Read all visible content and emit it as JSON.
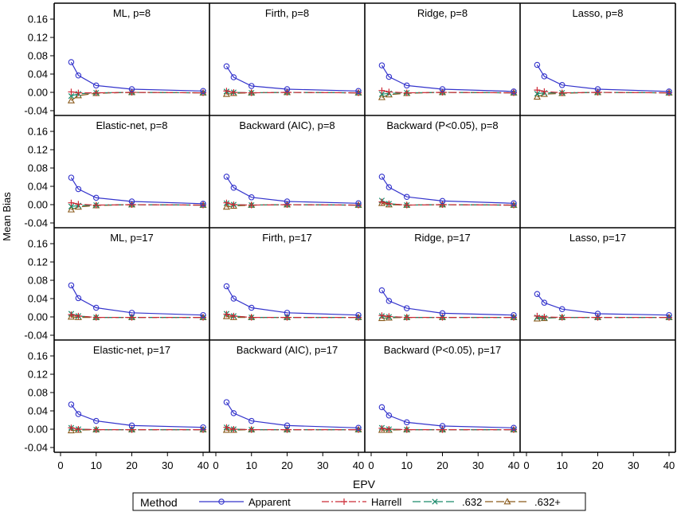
{
  "chart_data": {
    "type": "line",
    "ylabel": "Mean Bias",
    "xlabel": "EPV",
    "xlim": [
      0,
      40
    ],
    "ylim": [
      -0.04,
      0.16
    ],
    "x_ticks": [
      "0",
      "10",
      "20",
      "30",
      "40"
    ],
    "y_ticks": [
      "-0.04",
      "0.00",
      "0.04",
      "0.08",
      "0.12",
      "0.16"
    ],
    "grid": false,
    "legend": {
      "position": "bottom",
      "title": "Method",
      "entries": [
        {
          "name": "Apparent",
          "color": "#3434cc",
          "marker": "circle",
          "dash": "solid"
        },
        {
          "name": "Harrell",
          "color": "#cc2a36",
          "marker": "plus",
          "dash": "dashdot"
        },
        {
          "name": ".632",
          "color": "#1b8a6b",
          "marker": "x",
          "dash": "longdash"
        },
        {
          "name": ".632+",
          "color": "#8a5a1b",
          "marker": "triangle",
          "dash": "longdash"
        }
      ]
    },
    "x": [
      3,
      5,
      10,
      20,
      40
    ],
    "panels": [
      {
        "title": "ML, p=8",
        "series": [
          {
            "name": "Apparent",
            "values": [
              0.066,
              0.037,
              0.015,
              0.007,
              0.003
            ]
          },
          {
            "name": "Harrell",
            "values": [
              0.001,
              -0.001,
              -0.001,
              0.0,
              -0.001
            ]
          },
          {
            "name": ".632",
            "values": [
              -0.008,
              -0.003,
              -0.001,
              0.0,
              -0.001
            ]
          },
          {
            "name": ".632+",
            "values": [
              -0.018,
              -0.007,
              -0.002,
              0.0,
              -0.001
            ]
          }
        ]
      },
      {
        "title": "Firth, p=8",
        "series": [
          {
            "name": "Apparent",
            "values": [
              0.057,
              0.033,
              0.014,
              0.007,
              0.003
            ]
          },
          {
            "name": "Harrell",
            "values": [
              0.003,
              0.0,
              -0.001,
              0.0,
              -0.001
            ]
          },
          {
            "name": ".632",
            "values": [
              0.002,
              0.0,
              -0.001,
              0.0,
              -0.001
            ]
          },
          {
            "name": ".632+",
            "values": [
              -0.004,
              -0.002,
              -0.001,
              0.0,
              -0.001
            ]
          }
        ]
      },
      {
        "title": "Ridge, p=8",
        "series": [
          {
            "name": "Apparent",
            "values": [
              0.059,
              0.034,
              0.015,
              0.007,
              0.002
            ]
          },
          {
            "name": "Harrell",
            "values": [
              0.004,
              0.001,
              -0.001,
              0.0,
              -0.001
            ]
          },
          {
            "name": ".632",
            "values": [
              -0.004,
              -0.002,
              -0.001,
              0.0,
              -0.001
            ]
          },
          {
            "name": ".632+",
            "values": [
              -0.011,
              -0.005,
              -0.002,
              0.0,
              -0.001
            ]
          }
        ]
      },
      {
        "title": "Lasso, p=8",
        "series": [
          {
            "name": "Apparent",
            "values": [
              0.06,
              0.035,
              0.016,
              0.007,
              0.002
            ]
          },
          {
            "name": "Harrell",
            "values": [
              0.005,
              0.002,
              -0.001,
              0.0,
              -0.001
            ]
          },
          {
            "name": ".632",
            "values": [
              -0.003,
              -0.001,
              -0.001,
              0.0,
              -0.001
            ]
          },
          {
            "name": ".632+",
            "values": [
              -0.01,
              -0.004,
              -0.002,
              0.0,
              -0.001
            ]
          }
        ]
      },
      {
        "title": "Elastic-net, p=8",
        "series": [
          {
            "name": "Apparent",
            "values": [
              0.059,
              0.034,
              0.015,
              0.007,
              0.002
            ]
          },
          {
            "name": "Harrell",
            "values": [
              0.004,
              0.001,
              -0.001,
              0.0,
              -0.001
            ]
          },
          {
            "name": ".632",
            "values": [
              -0.004,
              -0.002,
              -0.001,
              0.0,
              -0.001
            ]
          },
          {
            "name": ".632+",
            "values": [
              -0.011,
              -0.005,
              -0.002,
              0.0,
              -0.001
            ]
          }
        ]
      },
      {
        "title": "Backward (AIC), p=8",
        "series": [
          {
            "name": "Apparent",
            "values": [
              0.061,
              0.037,
              0.016,
              0.007,
              0.003
            ]
          },
          {
            "name": "Harrell",
            "values": [
              0.004,
              0.0,
              -0.001,
              0.0,
              -0.001
            ]
          },
          {
            "name": ".632",
            "values": [
              0.003,
              0.0,
              -0.001,
              0.0,
              -0.001
            ]
          },
          {
            "name": ".632+",
            "values": [
              -0.005,
              -0.003,
              -0.001,
              0.0,
              -0.001
            ]
          }
        ]
      },
      {
        "title": "Backward (P<0.05), p=8",
        "series": [
          {
            "name": "Apparent",
            "values": [
              0.061,
              0.038,
              0.017,
              0.008,
              0.003
            ]
          },
          {
            "name": "Harrell",
            "values": [
              0.006,
              0.002,
              -0.001,
              0.0,
              -0.001
            ]
          },
          {
            "name": ".632",
            "values": [
              0.009,
              0.002,
              -0.001,
              0.0,
              -0.001
            ]
          },
          {
            "name": ".632+",
            "values": [
              0.003,
              0.0,
              -0.001,
              0.0,
              -0.001
            ]
          }
        ]
      },
      null,
      {
        "title": "ML, p=17",
        "series": [
          {
            "name": "Apparent",
            "values": [
              0.069,
              0.041,
              0.02,
              0.009,
              0.004
            ]
          },
          {
            "name": "Harrell",
            "values": [
              0.005,
              0.002,
              -0.001,
              -0.001,
              -0.001
            ]
          },
          {
            "name": ".632",
            "values": [
              0.007,
              0.002,
              -0.001,
              -0.001,
              -0.001
            ]
          },
          {
            "name": ".632+",
            "values": [
              0.0,
              -0.001,
              -0.001,
              -0.001,
              -0.001
            ]
          }
        ]
      },
      {
        "title": "Firth, p=17",
        "series": [
          {
            "name": "Apparent",
            "values": [
              0.067,
              0.04,
              0.02,
              0.009,
              0.004
            ]
          },
          {
            "name": "Harrell",
            "values": [
              0.006,
              0.002,
              -0.001,
              -0.001,
              -0.001
            ]
          },
          {
            "name": ".632",
            "values": [
              0.007,
              0.002,
              -0.001,
              -0.001,
              -0.001
            ]
          },
          {
            "name": ".632+",
            "values": [
              0.001,
              -0.001,
              -0.001,
              -0.001,
              -0.001
            ]
          }
        ]
      },
      {
        "title": "Ridge, p=17",
        "series": [
          {
            "name": "Apparent",
            "values": [
              0.058,
              0.035,
              0.019,
              0.008,
              0.004
            ]
          },
          {
            "name": "Harrell",
            "values": [
              0.003,
              0.001,
              -0.001,
              -0.001,
              -0.001
            ]
          },
          {
            "name": ".632",
            "values": [
              0.002,
              0.0,
              -0.001,
              -0.001,
              -0.001
            ]
          },
          {
            "name": ".632+",
            "values": [
              -0.003,
              -0.002,
              -0.001,
              -0.001,
              -0.001
            ]
          }
        ]
      },
      {
        "title": "Lasso, p=17",
        "series": [
          {
            "name": "Apparent",
            "values": [
              0.05,
              0.031,
              0.017,
              0.007,
              0.004
            ]
          },
          {
            "name": "Harrell",
            "values": [
              0.002,
              0.0,
              -0.001,
              -0.001,
              -0.001
            ]
          },
          {
            "name": ".632",
            "values": [
              -0.001,
              -0.002,
              -0.001,
              -0.001,
              -0.001
            ]
          },
          {
            "name": ".632+",
            "values": [
              -0.004,
              -0.003,
              -0.001,
              -0.001,
              -0.001
            ]
          }
        ]
      },
      {
        "title": "Elastic-net, p=17",
        "series": [
          {
            "name": "Apparent",
            "values": [
              0.054,
              0.033,
              0.018,
              0.008,
              0.004
            ]
          },
          {
            "name": "Harrell",
            "values": [
              0.003,
              0.0,
              -0.001,
              -0.001,
              -0.001
            ]
          },
          {
            "name": ".632",
            "values": [
              0.003,
              0.0,
              -0.001,
              -0.001,
              -0.001
            ]
          },
          {
            "name": ".632+",
            "values": [
              -0.003,
              -0.002,
              -0.001,
              -0.001,
              -0.001
            ]
          }
        ]
      },
      {
        "title": "Backward (AIC), p=17",
        "series": [
          {
            "name": "Apparent",
            "values": [
              0.059,
              0.035,
              0.018,
              0.008,
              0.003
            ]
          },
          {
            "name": "Harrell",
            "values": [
              0.004,
              0.0,
              -0.001,
              -0.001,
              -0.001
            ]
          },
          {
            "name": ".632",
            "values": [
              0.004,
              0.0,
              -0.001,
              -0.001,
              -0.001
            ]
          },
          {
            "name": ".632+",
            "values": [
              -0.002,
              -0.002,
              -0.001,
              -0.001,
              -0.001
            ]
          }
        ]
      },
      {
        "title": "Backward (P<0.05), p=17",
        "series": [
          {
            "name": "Apparent",
            "values": [
              0.048,
              0.03,
              0.015,
              0.007,
              0.003
            ]
          },
          {
            "name": "Harrell",
            "values": [
              0.002,
              0.0,
              -0.001,
              -0.001,
              -0.001
            ]
          },
          {
            "name": ".632",
            "values": [
              0.003,
              0.0,
              -0.001,
              -0.001,
              -0.001
            ]
          },
          {
            "name": ".632+",
            "values": [
              -0.002,
              -0.002,
              -0.001,
              -0.001,
              -0.001
            ]
          }
        ]
      },
      null
    ]
  }
}
